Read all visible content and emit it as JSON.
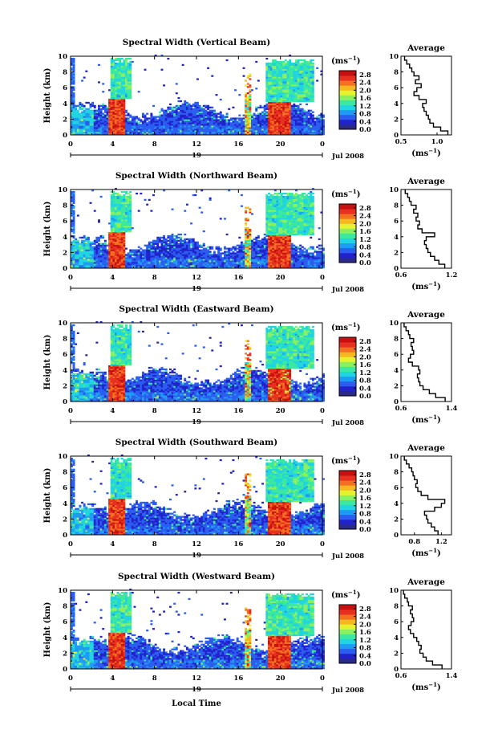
{
  "chart_data": {
    "type": "heatmap",
    "global": {
      "x_ticks": [
        "0",
        "4",
        "8",
        "12",
        "16",
        "20",
        "0"
      ],
      "date_label": "19",
      "month_label": "Jul 2008",
      "xlabel": "Local Time",
      "ylabel": "Height (km)",
      "y_ticks": [
        "0",
        "2",
        "4",
        "6",
        "8",
        "10"
      ],
      "xlim_hours": [
        0,
        24
      ],
      "ylim_km": [
        0,
        10
      ],
      "unit_label": "(ms",
      "unit_exp": "−1",
      "avg_title": "Average",
      "colorscale": [
        "#2a2a88",
        "#2222cc",
        "#2a5df0",
        "#1e9cf5",
        "#20d4e0",
        "#3ae8a0",
        "#8af060",
        "#e6f230",
        "#f5b820",
        "#f27020",
        "#e83020",
        "#c81010"
      ],
      "colorbar_ticks": [
        "0.0",
        "0.4",
        "0.8",
        "1.2",
        "1.6",
        "2.0",
        "2.4",
        "2.8"
      ],
      "colorbar_range": [
        0,
        3.0
      ],
      "grid": false
    },
    "panels": [
      {
        "title": "Spectral Width (Vertical Beam)",
        "avg_xticks": [
          "0.5",
          "1.0"
        ],
        "avg_xlim": [
          0.5,
          1.2
        ],
        "avg_tick_values": [
          0.5,
          1.0
        ],
        "avg_profile": {
          "height_km": [
            0,
            0.5,
            1,
            1.5,
            2,
            2.5,
            3,
            3.5,
            4,
            4.5,
            5,
            5.5,
            6,
            6.5,
            7,
            7.5,
            8,
            8.5,
            9,
            9.5
          ],
          "value": [
            1.15,
            1.05,
            0.95,
            0.9,
            0.88,
            0.85,
            0.82,
            0.8,
            0.85,
            0.75,
            0.68,
            0.72,
            0.78,
            0.7,
            0.75,
            0.68,
            0.65,
            0.62,
            0.58,
            0.55
          ]
        }
      },
      {
        "title": "Spectral Width (Northward Beam)",
        "avg_xticks": [
          "0.6",
          "1.2"
        ],
        "avg_xlim": [
          0.6,
          1.2
        ],
        "avg_tick_values": [
          0.6,
          1.2
        ],
        "avg_profile": {
          "height_km": [
            0,
            0.5,
            1,
            1.5,
            2,
            2.5,
            3,
            3.5,
            4,
            4.5,
            5,
            5.5,
            6,
            6.5,
            7,
            7.5,
            8,
            8.5,
            9,
            9.5
          ],
          "value": [
            1.12,
            1.05,
            1.0,
            0.95,
            0.92,
            0.9,
            0.88,
            0.9,
            1.0,
            0.85,
            0.8,
            0.82,
            0.78,
            0.8,
            0.75,
            0.78,
            0.72,
            0.7,
            0.68,
            0.65
          ]
        }
      },
      {
        "title": "Spectral Width (Eastward Beam)",
        "avg_xticks": [
          "0.6",
          "1.4"
        ],
        "avg_xlim": [
          0.6,
          1.4
        ],
        "avg_tick_values": [
          0.6,
          1.4
        ],
        "avg_profile": {
          "height_km": [
            0,
            0.5,
            1,
            1.5,
            2,
            2.5,
            3,
            3.5,
            4,
            4.5,
            5,
            5.5,
            6,
            6.5,
            7,
            7.5,
            8,
            8.5,
            9,
            9.5
          ],
          "value": [
            1.3,
            1.15,
            1.05,
            0.95,
            0.9,
            0.88,
            0.86,
            0.9,
            0.88,
            0.78,
            0.72,
            0.75,
            0.8,
            0.78,
            0.76,
            0.8,
            0.74,
            0.72,
            0.68,
            0.65
          ]
        }
      },
      {
        "title": "Spectral Width (Southward Beam)",
        "avg_xticks": [
          "0.8",
          "1.2"
        ],
        "avg_xlim": [
          0.6,
          1.35
        ],
        "avg_tick_values": [
          0.8,
          1.2
        ],
        "avg_profile": {
          "height_km": [
            0,
            0.5,
            1,
            1.5,
            2,
            2.5,
            3,
            3.5,
            4,
            4.5,
            5,
            5.5,
            6,
            6.5,
            7,
            7.5,
            8,
            8.5,
            9,
            9.5
          ],
          "value": [
            1.15,
            1.1,
            1.05,
            1.0,
            0.98,
            0.95,
            1.1,
            1.2,
            1.25,
            1.0,
            0.9,
            0.85,
            0.82,
            0.84,
            0.8,
            0.78,
            0.76,
            0.72,
            0.68,
            0.65
          ]
        }
      },
      {
        "title": "Spectral Width (Westward Beam)",
        "avg_xticks": [
          "0.6",
          "1.4"
        ],
        "avg_xlim": [
          0.6,
          1.4
        ],
        "avg_tick_values": [
          0.6,
          1.4
        ],
        "avg_profile": {
          "height_km": [
            0,
            0.5,
            1,
            1.5,
            2,
            2.5,
            3,
            3.5,
            4,
            4.5,
            5,
            5.5,
            6,
            6.5,
            7,
            7.5,
            8,
            8.5,
            9,
            9.5
          ],
          "value": [
            1.25,
            1.1,
            1.0,
            0.95,
            0.9,
            0.92,
            0.88,
            0.85,
            0.8,
            0.75,
            0.72,
            0.76,
            0.8,
            0.78,
            0.75,
            0.78,
            0.72,
            0.7,
            0.66,
            0.64
          ]
        }
      }
    ]
  }
}
